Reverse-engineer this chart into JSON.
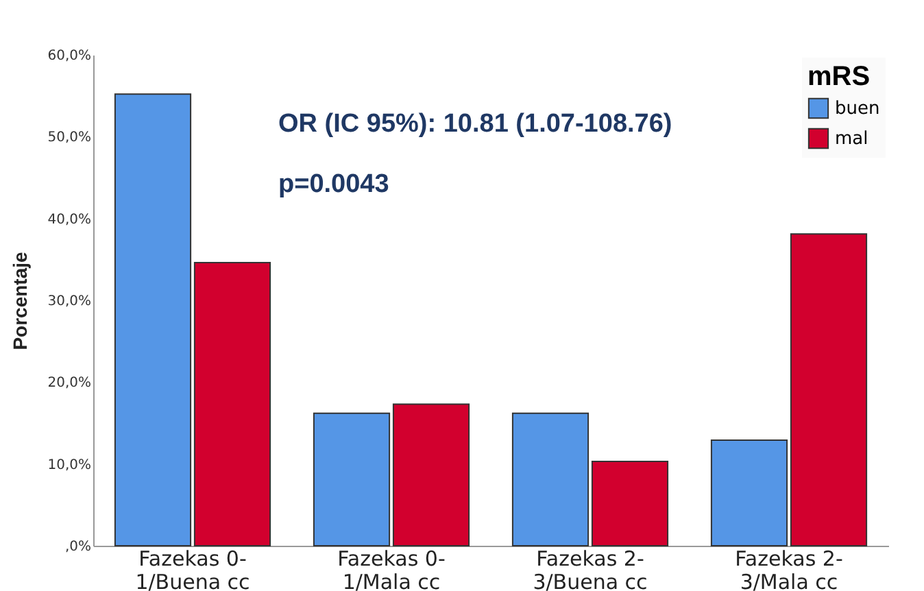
{
  "chart_data": {
    "type": "bar",
    "ylabel": "Porcentaje",
    "legend_title": "mRS",
    "legend": "top right",
    "grid": false,
    "categories": [
      "Fazekas 0-1/Buena cc",
      "Fazekas 0-1/Mala cc",
      "Fazekas 2-3/Buena cc",
      "Fazekas 2-3/Mala cc"
    ],
    "series": [
      {
        "name": "buen",
        "color": "#5596e6",
        "values": [
          55.2,
          16.2,
          16.2,
          12.9
        ]
      },
      {
        "name": "mal",
        "color": "#d2002e",
        "values": [
          34.6,
          17.3,
          10.3,
          38.1
        ]
      }
    ],
    "ylim": [
      0,
      60
    ],
    "yticks": [
      {
        "value": 0,
        "label": ",0%"
      },
      {
        "value": 10,
        "label": "10,0%"
      },
      {
        "value": 20,
        "label": "20,0%"
      },
      {
        "value": 30,
        "label": "30,0%"
      },
      {
        "value": 40,
        "label": "40,0%"
      },
      {
        "value": 50,
        "label": "50,0%"
      },
      {
        "value": 60,
        "label": "60,0%"
      }
    ],
    "annotations": [
      "OR (IC 95%): 10.81 (1.07-108.76)",
      "p=0.0043"
    ]
  }
}
